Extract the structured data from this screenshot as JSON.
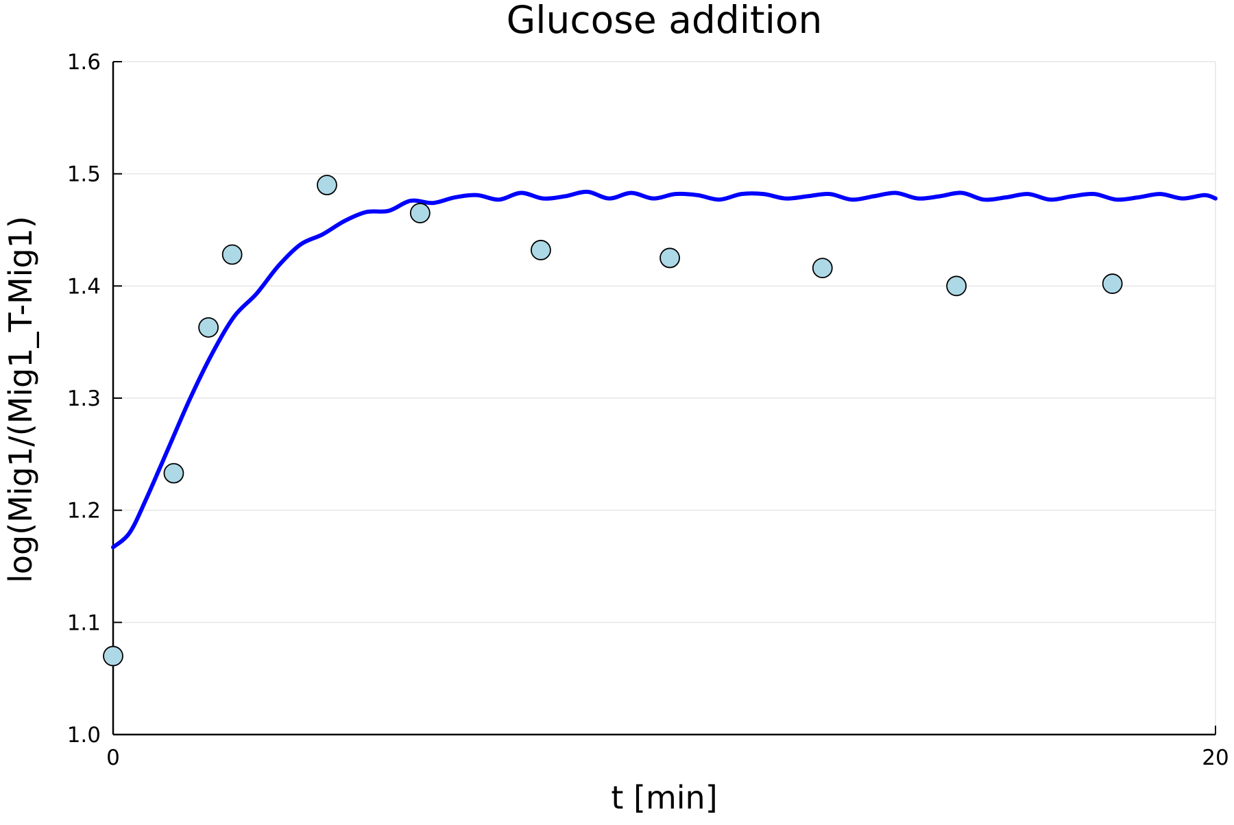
{
  "chart_data": {
    "type": "line",
    "title": "Glucose addition",
    "xlabel": "t [min]",
    "ylabel": "log(Mig1/(Mig1_T-Mig1)",
    "xlim": [
      0,
      20
    ],
    "ylim": [
      1.0,
      1.6
    ],
    "xticks": [
      0,
      20
    ],
    "yticks": [
      1.0,
      1.1,
      1.2,
      1.3,
      1.4,
      1.5,
      1.6
    ],
    "ytick_labels": [
      "1.0",
      "1.1",
      "1.2",
      "1.3",
      "1.4",
      "1.5",
      "1.6"
    ],
    "xtick_labels": [
      "0",
      "20"
    ],
    "grid": true,
    "legend": "none",
    "series": [
      {
        "type": "line",
        "color": "#0000ff",
        "x": [
          0,
          0.3,
          0.6,
          1.0,
          1.4,
          1.8,
          2.2,
          2.6,
          3.0,
          3.4,
          3.8,
          4.2,
          4.6,
          5.0,
          5.4,
          5.8,
          6.2,
          6.6,
          7.0,
          7.4,
          7.8,
          8.2,
          8.6,
          9.0,
          9.4,
          9.8,
          10.2,
          10.6,
          11.0,
          11.4,
          11.8,
          12.2,
          12.6,
          13.0,
          13.4,
          13.8,
          14.2,
          14.6,
          15.0,
          15.4,
          15.8,
          16.2,
          16.6,
          17.0,
          17.4,
          17.8,
          18.2,
          18.6,
          19.0,
          19.4,
          19.8,
          20.0
        ],
        "y": [
          1.167,
          1.18,
          1.21,
          1.255,
          1.3,
          1.34,
          1.373,
          1.393,
          1.418,
          1.437,
          1.446,
          1.458,
          1.466,
          1.467,
          1.476,
          1.474,
          1.479,
          1.481,
          1.477,
          1.483,
          1.478,
          1.48,
          1.484,
          1.478,
          1.483,
          1.478,
          1.482,
          1.481,
          1.477,
          1.482,
          1.482,
          1.478,
          1.48,
          1.482,
          1.477,
          1.48,
          1.483,
          1.478,
          1.48,
          1.483,
          1.477,
          1.479,
          1.482,
          1.477,
          1.48,
          1.482,
          1.477,
          1.479,
          1.482,
          1.478,
          1.481,
          1.478
        ]
      },
      {
        "type": "scatter",
        "color": "#add8e6",
        "edge_color": "#000000",
        "x": [
          0.0,
          1.1,
          1.73,
          2.16,
          3.88,
          5.57,
          7.76,
          10.1,
          12.87,
          15.3,
          18.13
        ],
        "y": [
          1.07,
          1.233,
          1.363,
          1.428,
          1.49,
          1.465,
          1.432,
          1.425,
          1.416,
          1.4,
          1.402
        ]
      }
    ]
  }
}
